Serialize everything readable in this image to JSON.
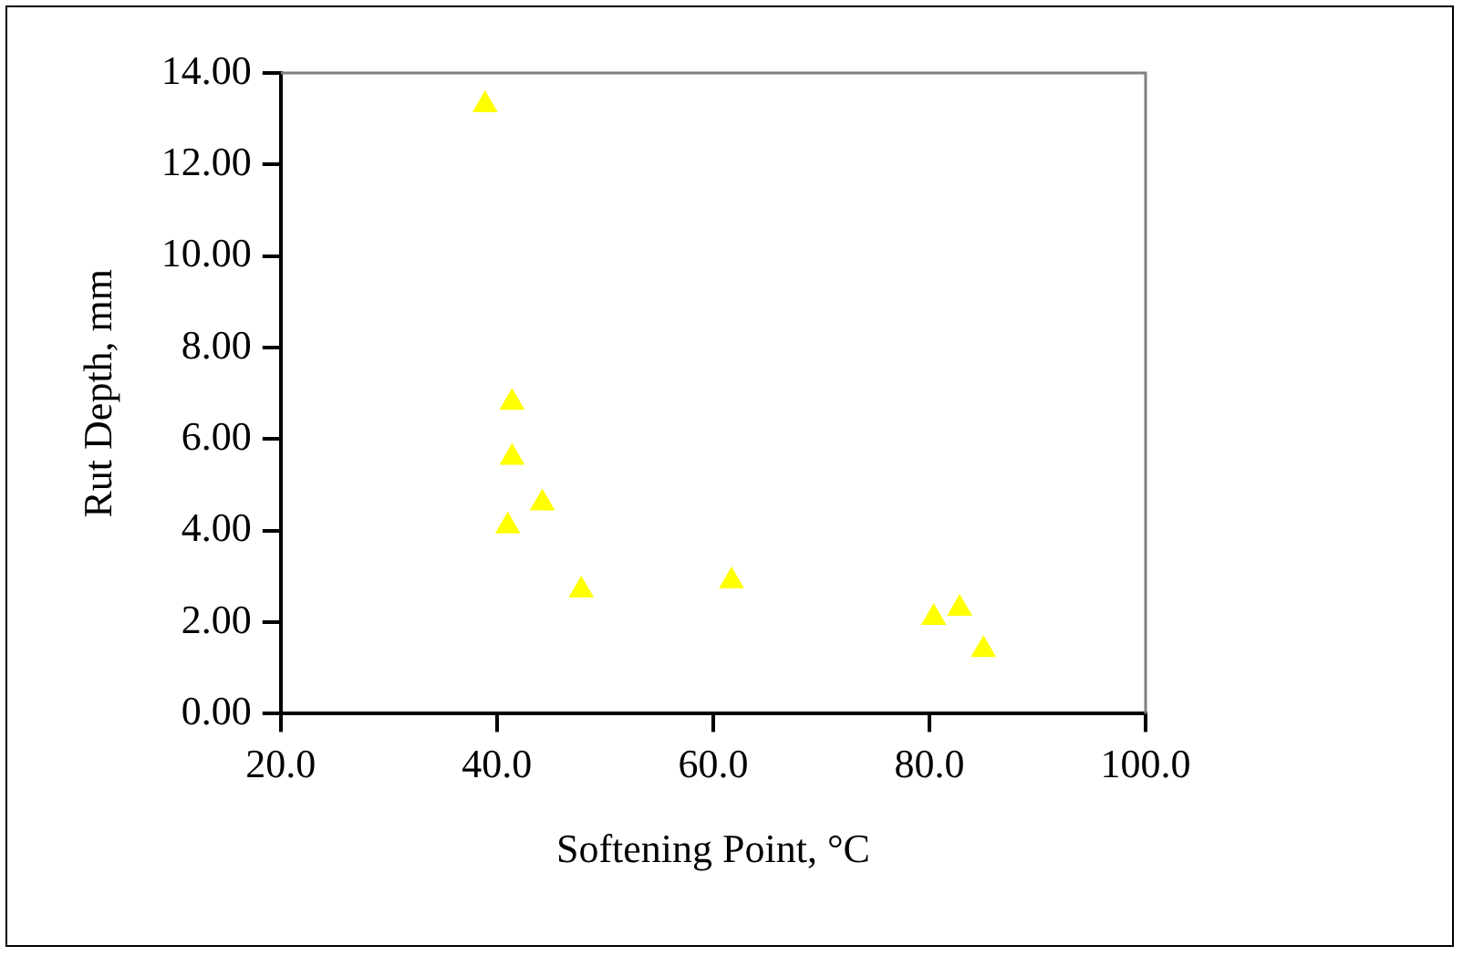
{
  "chart_data": {
    "type": "scatter",
    "xlabel": "Softening Point, °C",
    "ylabel": "Rut Depth, mm",
    "x": [
      38.9,
      41.4,
      41.4,
      41.0,
      44.2,
      47.8,
      61.7,
      80.4,
      82.8,
      85.0
    ],
    "series": [
      {
        "color": "#ffff00",
        "values": [
          13.3,
          6.8,
          5.6,
          4.1,
          4.6,
          2.7,
          2.9,
          2.1,
          2.3,
          1.4
        ]
      }
    ],
    "xlim": [
      20,
      100
    ],
    "xticks": [
      {
        "value": 20,
        "label": "20.0"
      },
      {
        "value": 40,
        "label": "40.0"
      },
      {
        "value": 60,
        "label": "60.0"
      },
      {
        "value": 80,
        "label": "80.0"
      },
      {
        "value": 100,
        "label": "100.0"
      }
    ],
    "ylim": [
      0,
      14
    ],
    "yticks": [
      {
        "value": 0,
        "label": "0.00"
      },
      {
        "value": 2,
        "label": "2.00"
      },
      {
        "value": 4,
        "label": "4.00"
      },
      {
        "value": 6,
        "label": "6.00"
      },
      {
        "value": 8,
        "label": "8.00"
      },
      {
        "value": 10,
        "label": "10.00"
      },
      {
        "value": 12,
        "label": "12.00"
      },
      {
        "value": 14,
        "label": "14.00"
      }
    ],
    "grid": false,
    "legend": false,
    "marker": "triangle"
  }
}
